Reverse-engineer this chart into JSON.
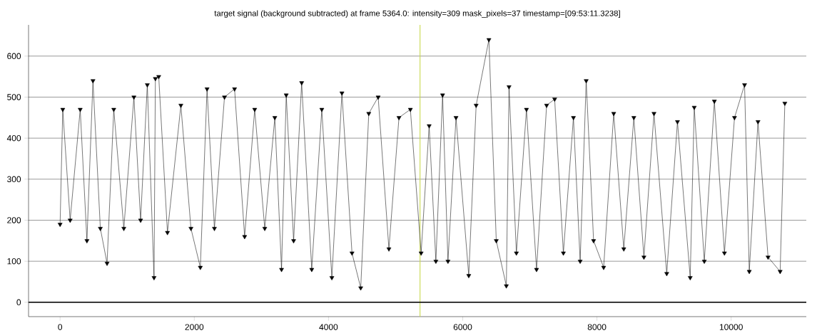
{
  "chart_data": {
    "type": "line",
    "title": "target signal (background subtracted) at frame 5364.0: intensity=309 mask_pixels=37 timestamp=[09:53:11.3238]",
    "x": [
      0,
      40,
      150,
      300,
      400,
      490,
      600,
      700,
      800,
      950,
      1100,
      1200,
      1300,
      1400,
      1420,
      1470,
      1600,
      1800,
      1950,
      2090,
      2190,
      2300,
      2450,
      2600,
      2750,
      2900,
      3050,
      3200,
      3300,
      3370,
      3480,
      3600,
      3750,
      3900,
      4050,
      4200,
      4350,
      4480,
      4600,
      4740,
      4900,
      5050,
      5220,
      5380,
      5500,
      5600,
      5700,
      5780,
      5900,
      6090,
      6200,
      6390,
      6500,
      6650,
      6690,
      6800,
      6950,
      7100,
      7250,
      7370,
      7500,
      7650,
      7750,
      7840,
      7950,
      8100,
      8250,
      8400,
      8550,
      8700,
      8850,
      9040,
      9200,
      9390,
      9450,
      9600,
      9750,
      9900,
      10050,
      10200,
      10270,
      10400,
      10550,
      10730,
      10800
    ],
    "series": [
      {
        "color": "#000000",
        "values": [
          190,
          470,
          200,
          470,
          150,
          540,
          180,
          95,
          470,
          180,
          500,
          200,
          530,
          60,
          545,
          550,
          170,
          480,
          180,
          85,
          520,
          180,
          500,
          520,
          160,
          470,
          180,
          450,
          80,
          505,
          150,
          535,
          80,
          470,
          60,
          510,
          120,
          35,
          460,
          500,
          130,
          450,
          470,
          120,
          430,
          100,
          505,
          100,
          450,
          65,
          480,
          640,
          150,
          40,
          525,
          120,
          470,
          80,
          480,
          495,
          120,
          450,
          100,
          540,
          150,
          85,
          460,
          130,
          450,
          110,
          460,
          70,
          440,
          60,
          475,
          100,
          490,
          120,
          450,
          530,
          75,
          440,
          110,
          75,
          485
        ]
      }
    ],
    "xlim": [
      -470,
      11120
    ],
    "ylim": [
      -35,
      676
    ],
    "xticks": [
      0,
      2000,
      4000,
      6000,
      8000,
      10000
    ],
    "yticks": [
      0,
      100,
      200,
      300,
      400,
      500,
      600
    ],
    "grid": "y",
    "marker": "triangle",
    "line_style": "solid",
    "ref_lines": [
      {
        "axis": "x",
        "value": 5364,
        "color": "#c8d84a"
      },
      {
        "axis": "y",
        "value": 0,
        "color": "#000000"
      }
    ]
  }
}
